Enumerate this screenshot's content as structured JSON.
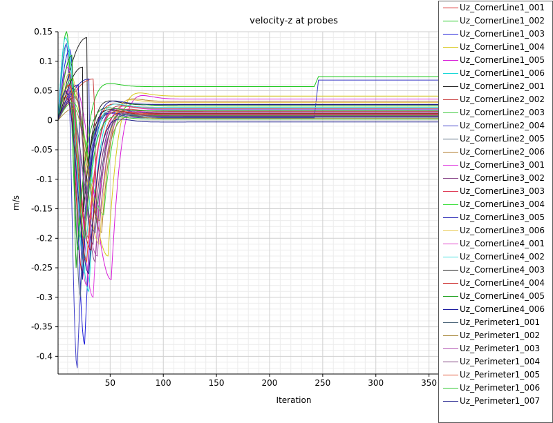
{
  "chart_data": {
    "type": "line",
    "title": "velocity-z at probes",
    "xlabel": "Iteration",
    "ylabel": "m/s",
    "xlim": [
      1,
      360
    ],
    "ylim": [
      -0.43,
      0.15
    ],
    "grid": true,
    "legend_position": "right",
    "x_ticks": [
      50,
      100,
      150,
      200,
      250,
      300,
      350
    ],
    "y_ticks": [
      0.15,
      0.1,
      0.05,
      0,
      -0.05,
      -0.1,
      -0.15,
      -0.2,
      -0.25,
      -0.3,
      -0.35,
      -0.4
    ],
    "series": [
      {
        "name": "Uz_CornerLine1_001",
        "color": "#d81b1b",
        "final": 0.022,
        "min": -0.26,
        "min_x": 24,
        "max": 0.09,
        "max_x": 10
      },
      {
        "name": "Uz_CornerLine1_002",
        "color": "#1ec81e",
        "final": 0.057,
        "jump": 0.074,
        "min": -0.22,
        "min_x": 20,
        "max": 0.15,
        "max_x": 9
      },
      {
        "name": "Uz_CornerLine1_003",
        "color": "#1b1bd8",
        "final": 0.012,
        "min": -0.38,
        "min_x": 26,
        "max": 0.12,
        "max_x": 12
      },
      {
        "name": "Uz_CornerLine1_004",
        "color": "#d8c81b",
        "final": 0.041,
        "min": -0.23,
        "min_x": 48,
        "max": 0.05,
        "max_x": 14
      },
      {
        "name": "Uz_CornerLine1_005",
        "color": "#d81bd8",
        "final": 0.036,
        "min": -0.27,
        "min_x": 51,
        "max": 0.06,
        "max_x": 16
      },
      {
        "name": "Uz_CornerLine1_006",
        "color": "#1bd8d8",
        "final": 0.019,
        "min": -0.29,
        "min_x": 30,
        "max": 0.14,
        "max_x": 8
      },
      {
        "name": "Uz_CornerLine2_001",
        "color": "#222222",
        "final": 0.026,
        "min": -0.33,
        "min_x": 20,
        "max": 0.14,
        "max_x": 28
      },
      {
        "name": "Uz_CornerLine2_002",
        "color": "#c83c3c",
        "final": 0.015,
        "min": -0.18,
        "min_x": 38,
        "max": 0.07,
        "max_x": 34
      },
      {
        "name": "Uz_CornerLine2_003",
        "color": "#3cc83c",
        "final": 0.008,
        "min": -0.2,
        "min_x": 22,
        "max": 0.1,
        "max_x": 12
      },
      {
        "name": "Uz_CornerLine2_004",
        "color": "#3c3cc8",
        "final": 0.004,
        "jump": 0.068,
        "min": -0.42,
        "min_x": 19,
        "max": 0.13,
        "max_x": 9
      },
      {
        "name": "Uz_CornerLine2_005",
        "color": "#556b7f",
        "final": 0.01,
        "min": -0.3,
        "min_x": 22,
        "max": 0.08,
        "max_x": 12
      },
      {
        "name": "Uz_CornerLine2_006",
        "color": "#b07a2a",
        "final": 0.032,
        "min": -0.19,
        "min_x": 42,
        "max": 0.04,
        "max_x": 16
      },
      {
        "name": "Uz_CornerLine3_001",
        "color": "#e040e0",
        "final": 0.018,
        "min": -0.3,
        "min_x": 34,
        "max": 0.09,
        "max_x": 10
      },
      {
        "name": "Uz_CornerLine3_002",
        "color": "#8c4a8c",
        "final": 0.012,
        "min": -0.24,
        "min_x": 36,
        "max": 0.05,
        "max_x": 18
      },
      {
        "name": "Uz_CornerLine3_003",
        "color": "#e0405a",
        "final": 0.02,
        "min": -0.2,
        "min_x": 30,
        "max": 0.06,
        "max_x": 11
      },
      {
        "name": "Uz_CornerLine3_004",
        "color": "#40e040",
        "final": 0.024,
        "min": -0.16,
        "min_x": 44,
        "max": 0.03,
        "max_x": 15
      },
      {
        "name": "Uz_CornerLine3_005",
        "color": "#2424b4",
        "final": 0.006,
        "min": -0.35,
        "min_x": 22,
        "max": 0.07,
        "max_x": 30
      },
      {
        "name": "Uz_CornerLine3_006",
        "color": "#e8c84a",
        "final": 0.03,
        "min": -0.21,
        "min_x": 40,
        "max": 0.08,
        "max_x": 12
      },
      {
        "name": "Uz_CornerLine4_001",
        "color": "#e040c8",
        "final": 0.014,
        "min": -0.28,
        "min_x": 28,
        "max": 0.05,
        "max_x": 9
      },
      {
        "name": "Uz_CornerLine4_002",
        "color": "#40e0e0",
        "final": 0.022,
        "min": -0.26,
        "min_x": 26,
        "max": 0.13,
        "max_x": 10
      },
      {
        "name": "Uz_CornerLine4_003",
        "color": "#1a1a1a",
        "final": 0.012,
        "min": -0.3,
        "min_x": 20,
        "max": 0.09,
        "max_x": 24
      },
      {
        "name": "Uz_CornerLine4_004",
        "color": "#c81e1e",
        "final": 0.009,
        "min": -0.22,
        "min_x": 32,
        "max": 0.04,
        "max_x": 8
      },
      {
        "name": "Uz_CornerLine4_005",
        "color": "#1ea01e",
        "final": 0.016,
        "min": -0.25,
        "min_x": 18,
        "max": 0.11,
        "max_x": 14
      },
      {
        "name": "Uz_CornerLine4_006",
        "color": "#1e1ea0",
        "final": 0.027,
        "min": -0.27,
        "min_x": 24,
        "max": 0.06,
        "max_x": 20
      },
      {
        "name": "Uz_Perimeter1_001",
        "color": "#4a6478",
        "final": 0.005,
        "min": -0.19,
        "min_x": 36,
        "max": 0.03,
        "max_x": 12
      },
      {
        "name": "Uz_Perimeter1_002",
        "color": "#a8883a",
        "final": 0.003,
        "min": -0.17,
        "min_x": 40,
        "max": 0.02,
        "max_x": 16
      },
      {
        "name": "Uz_Perimeter1_003",
        "color": "#b050b0",
        "final": 0.01,
        "min": -0.23,
        "min_x": 38,
        "max": 0.05,
        "max_x": 10
      },
      {
        "name": "Uz_Perimeter1_004",
        "color": "#7a3a7a",
        "final": 0.007,
        "min": -0.21,
        "min_x": 34,
        "max": 0.04,
        "max_x": 18
      },
      {
        "name": "Uz_Perimeter1_005",
        "color": "#e05030",
        "final": 0.011,
        "min": -0.24,
        "min_x": 28,
        "max": 0.06,
        "max_x": 12
      },
      {
        "name": "Uz_Perimeter1_006",
        "color": "#30c830",
        "final": 0.002,
        "min": -0.2,
        "min_x": 26,
        "max": 0.07,
        "max_x": 14
      },
      {
        "name": "Uz_Perimeter1_007",
        "color": "#20208c",
        "final": -0.003,
        "min": -0.26,
        "min_x": 30,
        "max": 0.05,
        "max_x": 8
      }
    ]
  }
}
